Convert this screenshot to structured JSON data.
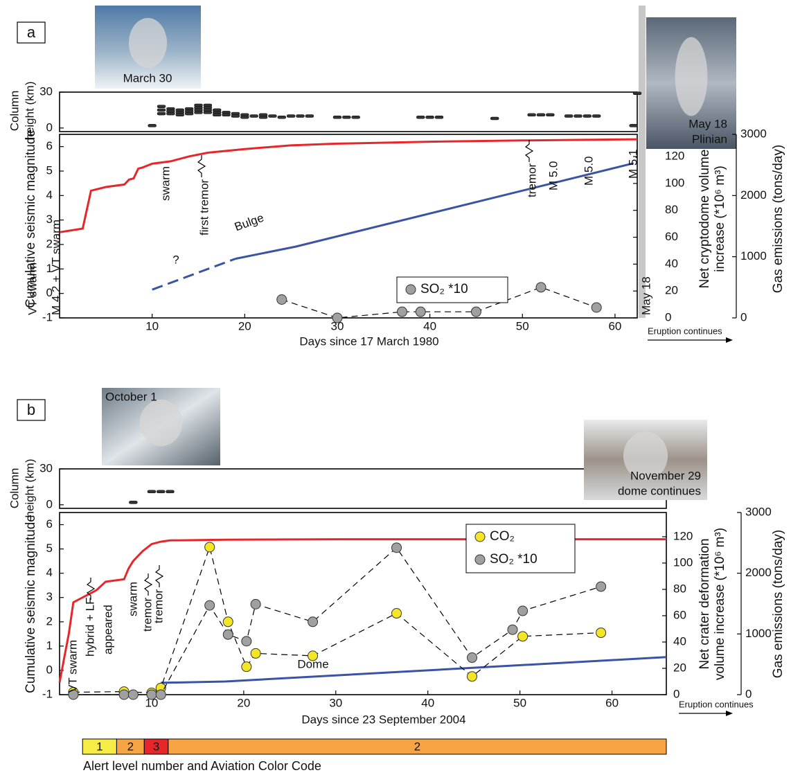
{
  "chart_data": [
    {
      "type": "line",
      "panel_label": "a",
      "photos": [
        {
          "caption": [
            "March 30"
          ]
        },
        {
          "caption": [
            "May 18",
            "Plinian"
          ]
        }
      ],
      "xlabel": "Days since 17 March 1980",
      "xlim": [
        0,
        62.4
      ],
      "xticks": [
        10,
        20,
        30,
        40,
        50,
        60
      ],
      "ylabel": "Cumulative seismic magnitude",
      "ylim": [
        -1,
        6.5
      ],
      "yticks": [
        -1,
        0,
        1,
        2,
        3,
        4,
        5,
        6
      ],
      "y2label": [
        "Net cryptodome volume",
        "increase (*10⁶ m³)"
      ],
      "y2lim": [
        0,
        136.5
      ],
      "y2ticks": [
        0,
        20,
        40,
        60,
        80,
        100,
        120
      ],
      "y3label": "Gas emissions (tons/day)",
      "y3lim": [
        0,
        3000
      ],
      "y3ticks": [
        0,
        1000,
        2000,
        3000
      ],
      "column": {
        "label": [
          "Column",
          "height (km)"
        ],
        "ylim": [
          -3,
          30
        ],
        "yticks": [
          0,
          30
        ],
        "color": "#333333",
        "x": [
          10,
          11,
          11,
          11,
          12,
          12,
          12,
          13,
          13,
          13,
          14,
          14,
          14,
          15,
          15,
          15,
          15,
          16,
          16,
          16,
          16,
          17,
          17,
          17,
          18,
          18,
          19,
          19,
          20,
          20,
          21,
          22,
          22,
          23,
          24,
          25,
          26,
          27,
          30,
          31,
          32,
          39,
          40,
          41,
          47,
          51,
          52,
          53,
          55,
          56,
          57,
          58,
          62,
          62.4
        ],
        "values": [
          2,
          18,
          15,
          12,
          16,
          14,
          12,
          15,
          13,
          11,
          16,
          14,
          12,
          19,
          17,
          15,
          13,
          19,
          17,
          15,
          13,
          15,
          13,
          11,
          13,
          11,
          12,
          10,
          11,
          9,
          10,
          11,
          9,
          10,
          9,
          10,
          10,
          10,
          9,
          9,
          9,
          9,
          9,
          9,
          8,
          11,
          11,
          11,
          10,
          10,
          10,
          10,
          2,
          29
        ]
      },
      "series": [
        {
          "color": "#e8262a",
          "axis": "y",
          "x": [
            0,
            2.5,
            3.4,
            5,
            7,
            7.5,
            8,
            8.5,
            9,
            10,
            12,
            14,
            16,
            20,
            25,
            30,
            40,
            50,
            62.4
          ],
          "values": [
            2.5,
            2.65,
            4.2,
            4.35,
            4.45,
            4.65,
            4.7,
            5.1,
            5.15,
            5.3,
            5.4,
            5.6,
            5.75,
            5.9,
            6.05,
            6.12,
            6.2,
            6.25,
            6.3
          ]
        },
        {
          "color": "#3a53a4",
          "axis": "y2",
          "dash": true,
          "x": [
            10,
            19
          ],
          "values": [
            21,
            44
          ]
        },
        {
          "color": "#3a53a4",
          "axis": "y2",
          "x": [
            19,
            25.5,
            62
          ],
          "values": [
            44,
            53,
            115
          ]
        },
        {
          "name": "SO₂ *10",
          "color": "#a0a0a0",
          "axis": "y3",
          "marker": "circle",
          "dash": true,
          "line_color": "#000000",
          "x": [
            24,
            30,
            37,
            39,
            45,
            52,
            58
          ],
          "values": [
            300,
            0,
            100,
            100,
            100,
            500,
            170
          ]
        }
      ],
      "annotations": [
        "VT swarm",
        "M 4.2 + VT swarm",
        "swarm",
        "first tremor",
        "Bulge",
        "?",
        "tremor",
        "M 5.0",
        "M 5.0",
        "M 5.1",
        "May 18"
      ],
      "note": "Eruption continues"
    },
    {
      "type": "line",
      "panel_label": "b",
      "photos": [
        {
          "caption": [
            "October 1"
          ]
        },
        {
          "caption": [
            "November 29",
            "dome continues"
          ]
        }
      ],
      "xlabel": "Days since 23 September 2004",
      "xlim": [
        0,
        65.9
      ],
      "xticks": [
        10,
        20,
        30,
        40,
        50,
        60
      ],
      "ylabel": "Cumulative seismic magnitude",
      "ylim": [
        -1,
        6.5
      ],
      "yticks": [
        -1,
        0,
        1,
        2,
        3,
        4,
        5,
        6
      ],
      "y2label": [
        "Net crater deformation",
        "volume increase (*10⁶ m³)"
      ],
      "y2lim": [
        0,
        138.4
      ],
      "y2ticks": [
        0,
        20,
        40,
        60,
        80,
        100,
        120
      ],
      "y3label": "Gas emissions (tons/day)",
      "y3lim": [
        0,
        3000
      ],
      "y3ticks": [
        0,
        1000,
        2000,
        3000
      ],
      "column": {
        "label": [
          "Column",
          "height (km)"
        ],
        "ylim": [
          -3,
          30
        ],
        "yticks": [
          0,
          30
        ],
        "color": "#333333",
        "x": [
          8,
          10,
          11,
          12
        ],
        "values": [
          2,
          11,
          11,
          11
        ]
      },
      "series": [
        {
          "color": "#e8262a",
          "axis": "y",
          "x": [
            0,
            0.5,
            1,
            1.5,
            2.5,
            3,
            4,
            5,
            7,
            7.5,
            8,
            9,
            10,
            11,
            12,
            18,
            30,
            65.9
          ],
          "values": [
            -0.5,
            0.5,
            1.5,
            2.8,
            3.0,
            3.1,
            3.3,
            3.65,
            3.75,
            4.2,
            4.5,
            4.9,
            5.2,
            5.3,
            5.35,
            5.38,
            5.4,
            5.4
          ]
        },
        {
          "color": "#3a53a4",
          "axis": "y2",
          "x": [
            11,
            18,
            65.9
          ],
          "values": [
            9,
            10,
            28.5
          ]
        },
        {
          "name": "CO₂",
          "color": "#f5e625",
          "axis": "y3",
          "marker": "circle",
          "dash": true,
          "line_color": "#000000",
          "x": [
            1.5,
            7,
            10,
            11,
            16.3,
            18.3,
            20.3,
            21.3,
            27.5,
            36.6,
            44.8,
            50.3,
            58.8
          ],
          "values": [
            40,
            50,
            30,
            110,
            2430,
            1200,
            460,
            680,
            640,
            1340,
            300,
            960,
            1020
          ]
        },
        {
          "name": "SO₂ *10",
          "color": "#a0a0a0",
          "axis": "y3",
          "marker": "circle",
          "dash": true,
          "line_color": "#000000",
          "x": [
            1.5,
            7,
            8,
            10,
            11,
            16.3,
            18.3,
            20.3,
            21.3,
            27.5,
            36.6,
            44.8,
            49.2,
            50.3,
            58.8
          ],
          "values": [
            0,
            0,
            0,
            0,
            0,
            1470,
            990,
            880,
            1490,
            1200,
            2420,
            610,
            1070,
            1380,
            1780
          ]
        }
      ],
      "annotations": [
        "VT swarm",
        "hybrid + LF",
        "appeared",
        "swarm",
        "tremor",
        "tremor",
        "Dome"
      ],
      "note": "Eruption continues",
      "alert_levels": {
        "label": "Alert level number and Aviation Color Code",
        "segments": [
          {
            "start": 2.5,
            "end": 6.2,
            "level": 1,
            "color": "#f7ec45"
          },
          {
            "start": 6.2,
            "end": 9.2,
            "level": 2,
            "color": "#f7a445"
          },
          {
            "start": 9.2,
            "end": 11.8,
            "level": 3,
            "color": "#e8262a"
          },
          {
            "start": 11.8,
            "end": 65.9,
            "level": 2,
            "color": "#f7a445"
          }
        ]
      }
    }
  ]
}
